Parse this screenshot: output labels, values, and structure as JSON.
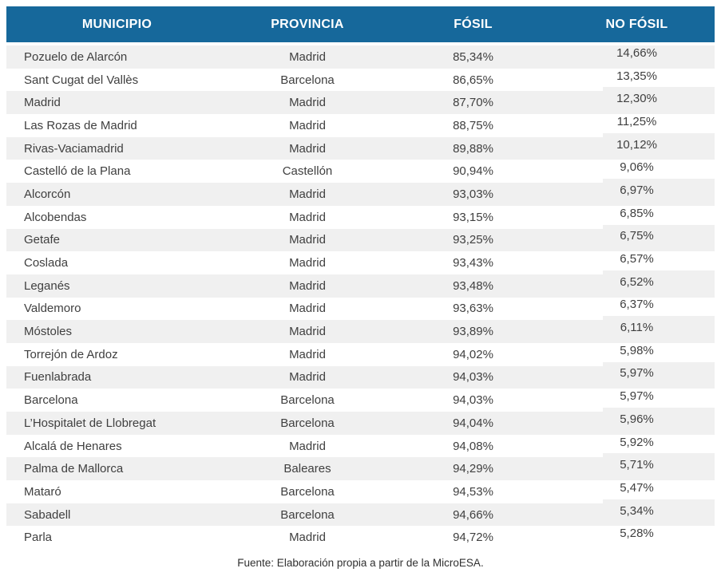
{
  "chart_data": {
    "type": "table",
    "columns": [
      "MUNICIPIO",
      "PROVINCIA",
      "FÓSIL",
      "NO FÓSIL"
    ],
    "rows": [
      [
        "Pozuelo de Alarcón",
        "Madrid",
        "85,34%",
        "14,66%"
      ],
      [
        "Sant Cugat del Vallès",
        "Barcelona",
        "86,65%",
        "13,35%"
      ],
      [
        "Madrid",
        "Madrid",
        "87,70%",
        "12,30%"
      ],
      [
        "Las Rozas de Madrid",
        "Madrid",
        "88,75%",
        "11,25%"
      ],
      [
        "Rivas-Vaciamadrid",
        "Madrid",
        "89,88%",
        "10,12%"
      ],
      [
        "Castelló de la Plana",
        "Castellón",
        "90,94%",
        "9,06%"
      ],
      [
        "Alcorcón",
        "Madrid",
        "93,03%",
        "6,97%"
      ],
      [
        "Alcobendas",
        "Madrid",
        "93,15%",
        "6,85%"
      ],
      [
        "Getafe",
        "Madrid",
        "93,25%",
        "6,75%"
      ],
      [
        "Coslada",
        "Madrid",
        "93,43%",
        "6,57%"
      ],
      [
        "Leganés",
        "Madrid",
        "93,48%",
        "6,52%"
      ],
      [
        "Valdemoro",
        "Madrid",
        "93,63%",
        "6,37%"
      ],
      [
        "Móstoles",
        "Madrid",
        "93,89%",
        "6,11%"
      ],
      [
        "Torrejón de Ardoz",
        "Madrid",
        "94,02%",
        "5,98%"
      ],
      [
        "Fuenlabrada",
        "Madrid",
        "94,03%",
        "5,97%"
      ],
      [
        "Barcelona",
        "Barcelona",
        "94,03%",
        "5,97%"
      ],
      [
        "L’Hospitalet de Llobregat",
        "Barcelona",
        "94,04%",
        "5,96%"
      ],
      [
        "Alcalá de Henares",
        "Madrid",
        "94,08%",
        "5,92%"
      ],
      [
        "Palma de Mallorca",
        "Baleares",
        "94,29%",
        "5,71%"
      ],
      [
        "Mataró",
        "Barcelona",
        "94,53%",
        "5,47%"
      ],
      [
        "Sabadell",
        "Barcelona",
        "94,66%",
        "5,34%"
      ],
      [
        "Parla",
        "Madrid",
        "94,72%",
        "5,28%"
      ]
    ],
    "source_note": "Fuente: Elaboración propia a partir de la MicroESA.",
    "layout": {
      "stripes": "alternating, first data row shaded",
      "legend": "none",
      "grid": "off"
    }
  },
  "colors": {
    "header_bg": "#16689B",
    "header_text": "#FFFFFF",
    "row_stripe_bg": "#F0F0F0",
    "body_text": "#3F3F3F",
    "note_text": "#303030"
  }
}
